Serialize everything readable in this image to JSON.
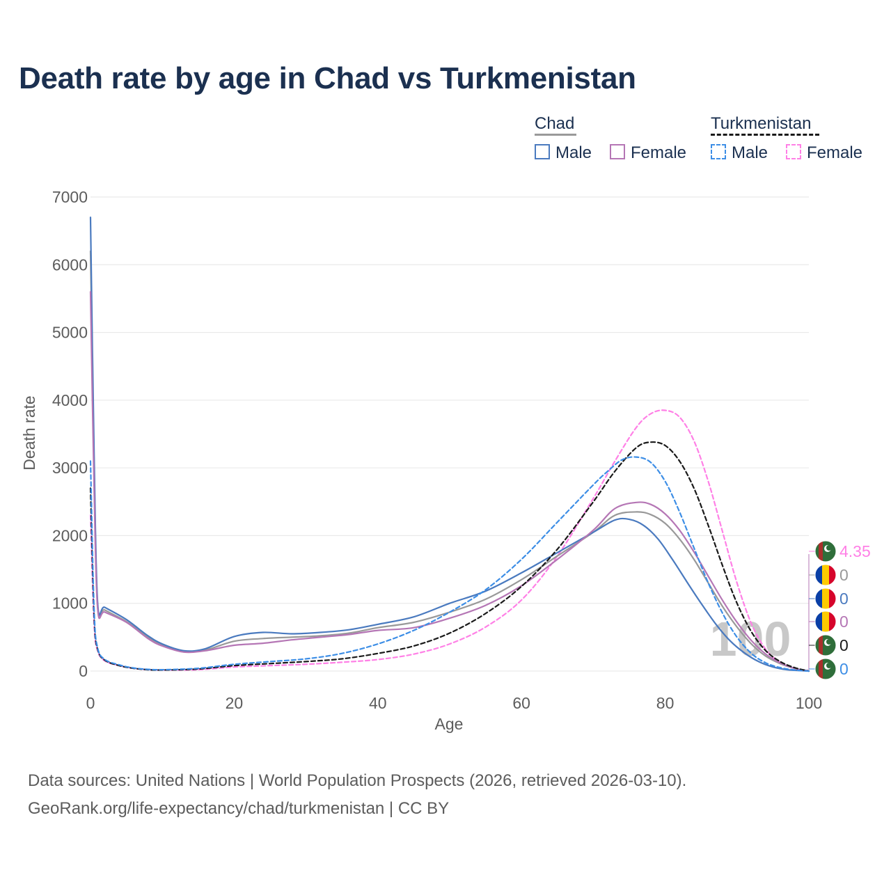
{
  "title": "Death rate by age in Chad vs Turkmenistan",
  "sources": {
    "line1": "Data sources: United Nations | World Population Prospects (2026, retrieved 2026-03-10).",
    "line2": "GeoRank.org/life-expectancy/chad/turkmenistan | CC BY"
  },
  "legend": {
    "groups": [
      {
        "name": "Chad",
        "underline_color": "#999999",
        "underline_style": "solid",
        "items": [
          {
            "label": "Male",
            "color": "#4a7abf",
            "style": "solid"
          },
          {
            "label": "Female",
            "color": "#b576b5",
            "style": "solid"
          }
        ]
      },
      {
        "name": "Turkmenistan",
        "underline_color": "#1a1a1a",
        "underline_style": "dashed",
        "items": [
          {
            "label": "Male",
            "color": "#3d8ee6",
            "style": "dashed"
          },
          {
            "label": "Female",
            "color": "#ff80e6",
            "style": "dashed"
          }
        ]
      }
    ]
  },
  "watermark": "100",
  "end_labels": [
    {
      "text": "4.35",
      "color": "#ff80e6",
      "flag": "turkmenistan"
    },
    {
      "text": "0",
      "color": "#999999",
      "flag": "chad"
    },
    {
      "text": "0",
      "color": "#4a7abf",
      "flag": "chad"
    },
    {
      "text": "0",
      "color": "#b576b5",
      "flag": "chad"
    },
    {
      "text": "0",
      "color": "#1a1a1a",
      "flag": "turkmenistan"
    },
    {
      "text": "0",
      "color": "#3d8ee6",
      "flag": "turkmenistan"
    }
  ],
  "chart_data": {
    "type": "line",
    "xlabel": "Age",
    "ylabel": "Death rate",
    "xlim": [
      0,
      100
    ],
    "ylim": [
      0,
      7000
    ],
    "xticks": [
      0,
      20,
      40,
      60,
      80,
      100
    ],
    "yticks": [
      0,
      1000,
      2000,
      3000,
      4000,
      5000,
      6000,
      7000
    ],
    "grid": "horizontal",
    "series": [
      {
        "name": "Turkmenistan Female",
        "color": "#ff80e6",
        "style": "dashed",
        "x": [
          0,
          0.5,
          1,
          2,
          4,
          6,
          8,
          10,
          15,
          20,
          25,
          30,
          35,
          40,
          45,
          50,
          55,
          60,
          65,
          70,
          73,
          76,
          78,
          80,
          82,
          84,
          86,
          88,
          90,
          92,
          94,
          96,
          98,
          100
        ],
        "y": [
          2300,
          700,
          300,
          150,
          80,
          40,
          20,
          15,
          20,
          60,
          80,
          100,
          130,
          170,
          250,
          400,
          650,
          1050,
          1700,
          2550,
          3100,
          3600,
          3800,
          3850,
          3750,
          3400,
          2800,
          2050,
          1300,
          700,
          320,
          130,
          40,
          4
        ]
      },
      {
        "name": "Chad Total",
        "color": "#999999",
        "style": "solid",
        "x": [
          0,
          0.5,
          1,
          2,
          5,
          8,
          10,
          13,
          16,
          20,
          24,
          28,
          32,
          36,
          40,
          45,
          50,
          55,
          60,
          65,
          70,
          73,
          76,
          78,
          80,
          82,
          84,
          86,
          88,
          90,
          92,
          94,
          96,
          98,
          100
        ],
        "y": [
          6200,
          3000,
          960,
          900,
          730,
          500,
          380,
          290,
          310,
          440,
          480,
          500,
          520,
          560,
          640,
          720,
          870,
          1060,
          1350,
          1700,
          2050,
          2300,
          2350,
          2310,
          2180,
          1950,
          1650,
          1300,
          950,
          650,
          400,
          220,
          110,
          40,
          0
        ]
      },
      {
        "name": "Chad Male",
        "color": "#4a7abf",
        "style": "solid",
        "x": [
          0,
          0.5,
          1,
          2,
          5,
          8,
          10,
          13,
          16,
          20,
          24,
          28,
          32,
          36,
          40,
          45,
          50,
          55,
          60,
          65,
          70,
          73,
          75,
          77,
          79,
          81,
          83,
          85,
          87,
          89,
          91,
          93,
          95,
          97,
          100
        ],
        "y": [
          6700,
          3200,
          1000,
          940,
          760,
          520,
          400,
          300,
          330,
          510,
          570,
          550,
          570,
          610,
          690,
          800,
          1000,
          1180,
          1450,
          1750,
          2050,
          2230,
          2240,
          2150,
          1950,
          1650,
          1320,
          1000,
          700,
          450,
          270,
          140,
          60,
          20,
          0
        ]
      },
      {
        "name": "Chad Female",
        "color": "#b576b5",
        "style": "solid",
        "x": [
          0,
          0.5,
          1,
          2,
          5,
          8,
          10,
          13,
          16,
          20,
          24,
          28,
          32,
          36,
          40,
          45,
          50,
          55,
          60,
          65,
          70,
          73,
          76,
          78,
          80,
          82,
          84,
          86,
          88,
          90,
          92,
          94,
          96,
          98,
          100
        ],
        "y": [
          5600,
          2700,
          920,
          870,
          720,
          480,
          370,
          280,
          300,
          380,
          410,
          460,
          500,
          540,
          600,
          640,
          780,
          970,
          1260,
          1650,
          2080,
          2400,
          2490,
          2460,
          2320,
          2080,
          1760,
          1400,
          1040,
          720,
          450,
          250,
          120,
          40,
          0
        ]
      },
      {
        "name": "Turkmenistan Total",
        "color": "#1a1a1a",
        "style": "dashed",
        "x": [
          0,
          0.5,
          1,
          2,
          4,
          6,
          8,
          10,
          15,
          20,
          25,
          30,
          35,
          40,
          45,
          50,
          55,
          60,
          65,
          70,
          73,
          76,
          78,
          80,
          82,
          84,
          86,
          88,
          90,
          92,
          94,
          96,
          98,
          100
        ],
        "y": [
          2700,
          800,
          320,
          160,
          80,
          40,
          20,
          15,
          30,
          80,
          110,
          140,
          180,
          260,
          370,
          560,
          850,
          1250,
          1800,
          2500,
          2950,
          3300,
          3380,
          3330,
          3100,
          2700,
          2150,
          1550,
          1000,
          580,
          300,
          140,
          50,
          0
        ]
      },
      {
        "name": "Turkmenistan Male",
        "color": "#3d8ee6",
        "style": "dashed",
        "x": [
          0,
          0.5,
          1,
          2,
          4,
          6,
          8,
          10,
          15,
          20,
          25,
          30,
          35,
          40,
          45,
          50,
          55,
          60,
          65,
          70,
          72,
          74,
          76,
          78,
          80,
          82,
          84,
          86,
          88,
          90,
          92,
          94,
          96,
          98,
          100
        ],
        "y": [
          3100,
          900,
          340,
          170,
          90,
          45,
          25,
          20,
          40,
          100,
          140,
          180,
          260,
          400,
          600,
          870,
          1200,
          1650,
          2200,
          2750,
          2950,
          3120,
          3160,
          3080,
          2800,
          2350,
          1820,
          1300,
          850,
          500,
          260,
          120,
          50,
          15,
          0
        ]
      }
    ]
  }
}
